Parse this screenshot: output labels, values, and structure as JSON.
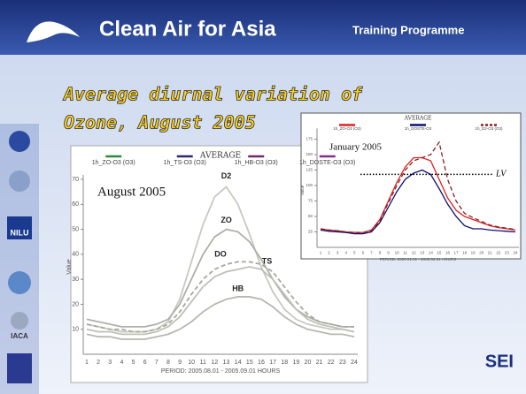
{
  "header": {
    "title": "Clean Air for Asia",
    "subtitle": "Training Programme"
  },
  "slide_title": [
    "Average diurnal variation of",
    "Ozone, August 2005"
  ],
  "logos": {
    "nilu": "NILU",
    "iaca": "IACA",
    "sei": "SEI"
  },
  "chart_data": [
    {
      "type": "line",
      "title": "AVERAGE",
      "annotation": "August 2005",
      "legend": [
        {
          "name": "1h_ZO-O3 (O3)",
          "color": "#2e8b3a"
        },
        {
          "name": "1h_TS-O3 (O3)",
          "color": "#2a2a6e"
        },
        {
          "name": "1h_HB-O3 (O3)",
          "color": "#6b2a6e"
        },
        {
          "name": "1h_DOSTE-O3 (O3)",
          "color": "#8a2a8e"
        }
      ],
      "x_label": "PERIOD: 2005.08.01 - 2005.09.01 HOURS",
      "y_label": "Value",
      "x": [
        1,
        2,
        3,
        4,
        5,
        6,
        7,
        8,
        9,
        10,
        11,
        12,
        13,
        14,
        15,
        16,
        17,
        18,
        19,
        20,
        21,
        22,
        23,
        24
      ],
      "xlim": [
        1,
        24
      ],
      "ylim": [
        0,
        70
      ],
      "yticks": [
        10,
        20,
        30,
        40,
        50,
        60,
        70
      ],
      "series": [
        {
          "name": "D2",
          "color": "#c8c8c0",
          "values": [
            12,
            11,
            10,
            9,
            9,
            9,
            10,
            13,
            22,
            37,
            52,
            63,
            67,
            60,
            48,
            35,
            25,
            18,
            14,
            12,
            11,
            10,
            10,
            9
          ]
        },
        {
          "name": "ZO",
          "color": "#b0b0a8",
          "values": [
            14,
            13,
            12,
            11,
            11,
            11,
            12,
            14,
            20,
            30,
            40,
            47,
            50,
            49,
            45,
            38,
            30,
            23,
            18,
            15,
            13,
            12,
            11,
            11
          ]
        },
        {
          "name": "DO",
          "color": "#a8a8a0",
          "dashed": true,
          "values": [
            12,
            11,
            10,
            10,
            9,
            9,
            10,
            12,
            17,
            24,
            30,
            34,
            36,
            37,
            37,
            36,
            33,
            27,
            21,
            16,
            13,
            12,
            11,
            11
          ]
        },
        {
          "name": "TS",
          "color": "#c0c0b8",
          "values": [
            10,
            9,
            9,
            8,
            8,
            8,
            9,
            11,
            15,
            21,
            27,
            31,
            33,
            34,
            35,
            34,
            30,
            24,
            18,
            14,
            12,
            11,
            10,
            9
          ]
        },
        {
          "name": "HB",
          "color": "#b8b8b0",
          "values": [
            8,
            7,
            7,
            6,
            6,
            6,
            7,
            8,
            10,
            13,
            17,
            20,
            22,
            23,
            23,
            22,
            19,
            15,
            12,
            10,
            9,
            8,
            8,
            7
          ]
        }
      ]
    },
    {
      "type": "line",
      "title": "AVERAGE",
      "annotation": "January 2005",
      "x_label": "PERIOD: 2005.01.01 - 2005.02.01 HOURS",
      "y_label": "Value",
      "x": [
        1,
        2,
        3,
        4,
        5,
        6,
        7,
        8,
        9,
        10,
        11,
        12,
        13,
        14,
        15,
        16,
        17,
        18,
        19,
        20,
        21,
        22,
        23,
        24
      ],
      "xlim": [
        1,
        24
      ],
      "ylim": [
        0,
        185
      ],
      "yticks": [
        25,
        50,
        75,
        100,
        125,
        150,
        175
      ],
      "reference_line": {
        "label": "LV",
        "value": 118
      },
      "series": [
        {
          "name": "1h_ZO-O3 (O3)",
          "color": "#e02020",
          "values": [
            30,
            28,
            27,
            25,
            24,
            24,
            28,
            45,
            75,
            105,
            130,
            145,
            145,
            140,
            110,
            80,
            60,
            50,
            45,
            40,
            35,
            32,
            30,
            28
          ]
        },
        {
          "name": "1h_DOSTE-O3",
          "color": "#101070",
          "values": [
            28,
            26,
            25,
            24,
            22,
            22,
            25,
            40,
            65,
            90,
            110,
            120,
            125,
            118,
            95,
            70,
            50,
            35,
            30,
            30,
            28,
            27,
            26,
            25
          ]
        },
        {
          "name": "1h_D2-O3 (O3)",
          "color": "#8a2020",
          "dashed": true,
          "values": [
            30,
            28,
            27,
            25,
            24,
            24,
            27,
            43,
            72,
            100,
            125,
            140,
            145,
            150,
            170,
            110,
            75,
            55,
            48,
            42,
            36,
            33,
            31,
            29
          ]
        }
      ]
    }
  ]
}
